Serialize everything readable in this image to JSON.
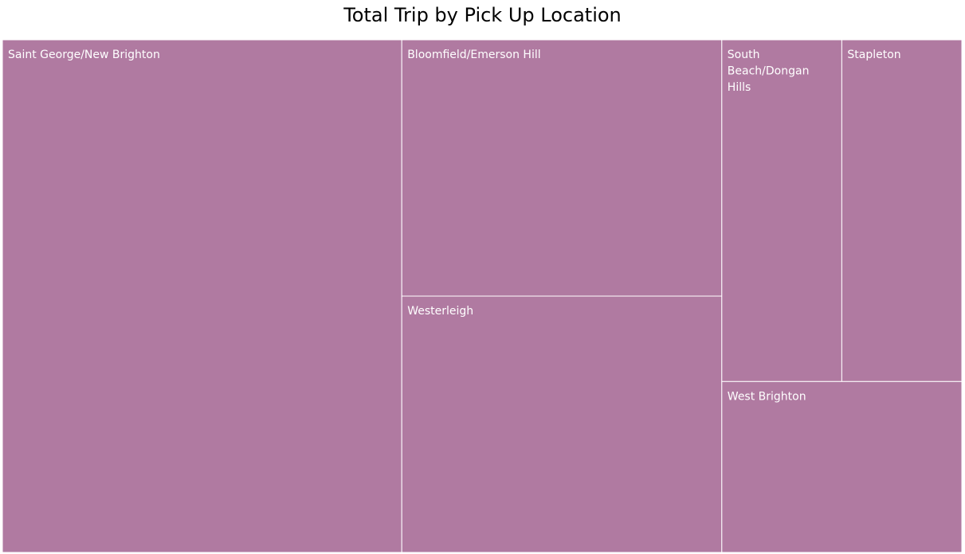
{
  "chart_data": {
    "type": "treemap",
    "title": "Total Trip by Pick Up Location",
    "color": "#b07aa1",
    "border_color": "#ffffff",
    "cells": [
      {
        "label": "Saint George/New Brighton",
        "label_lines": [
          "Saint George/New Brighton"
        ],
        "value": 322000
      },
      {
        "label": "Bloomfield/Emerson Hill",
        "label_lines": [
          "Bloomfield/Emerson Hill"
        ],
        "value": 129000
      },
      {
        "label": "Westerleigh",
        "label_lines": [
          "Westerleigh"
        ],
        "value": 129000
      },
      {
        "label": "South Beach/Dongan Hills",
        "label_lines": [
          "South",
          "Beach/Dongan",
          "Hills"
        ],
        "value": 64500
      },
      {
        "label": "Stapleton",
        "label_lines": [
          "Stapleton"
        ],
        "value": 64500
      },
      {
        "label": "West Brighton",
        "label_lines": [
          "West Brighton"
        ],
        "value": 64500
      }
    ]
  }
}
